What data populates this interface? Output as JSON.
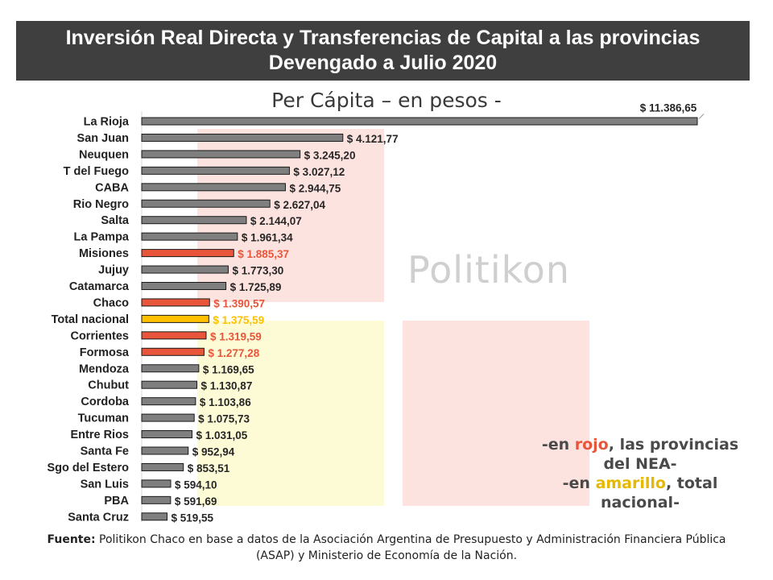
{
  "title": {
    "line1": "Inversión Real Directa y Transferencias de Capital a las provincias",
    "line2": "Devengado a Julio 2020"
  },
  "subtitle": "Per Cápita – en pesos -",
  "watermark": "Politikon",
  "legend": {
    "l1_prefix": "-en ",
    "l1_color_word": "rojo",
    "l1_suffix": ", las provincias",
    "l2": "del NEA-",
    "l3_prefix": "-en ",
    "l3_color_word": "amarillo",
    "l3_suffix": ", total",
    "l4": "nacional-"
  },
  "source": {
    "label": "Fuente:",
    "text": " Politikon Chaco en base a datos de la Asociación Argentina de Presupuesto y Administración Financiera Pública (ASAP) y Ministerio de Economía de la Nación."
  },
  "colors": {
    "default": "#7f7f7f",
    "nea": "#e8553a",
    "national": "#ffc000",
    "label_default": "#262626",
    "title_bg": "#3f3f3f"
  },
  "chart_data": {
    "type": "bar",
    "orientation": "horizontal",
    "title": "Per Cápita – en pesos -",
    "xlabel": "",
    "ylabel": "",
    "xlim": [
      0,
      11386.65
    ],
    "categories": [
      "La Rioja",
      "San Juan",
      "Neuquen",
      "T del Fuego",
      "CABA",
      "Rio Negro",
      "Salta",
      "La Pampa",
      "Misiones",
      "Jujuy",
      "Catamarca",
      "Chaco",
      "Total nacional",
      "Corrientes",
      "Formosa",
      "Mendoza",
      "Chubut",
      "Cordoba",
      "Tucuman",
      "Entre Rios",
      "Santa Fe",
      "Sgo del Estero",
      "San Luis",
      "PBA",
      "Santa Cruz"
    ],
    "values": [
      11386.65,
      4121.77,
      3245.2,
      3027.12,
      2944.75,
      2627.04,
      2144.07,
      1961.34,
      1885.37,
      1773.3,
      1725.89,
      1390.57,
      1375.59,
      1319.59,
      1277.28,
      1169.65,
      1130.87,
      1103.86,
      1075.73,
      1031.05,
      952.94,
      853.51,
      594.1,
      591.69,
      519.55
    ],
    "labels": [
      "$ 11.386,65",
      "$ 4.121,77",
      "$ 3.245,20",
      "$ 3.027,12",
      "$ 2.944,75",
      "$ 2.627,04",
      "$ 2.144,07",
      "$ 1.961,34",
      "$ 1.885,37",
      "$ 1.773,30",
      "$ 1.725,89",
      "$ 1.390,57",
      "$ 1.375,59",
      "$ 1.319,59",
      "$ 1.277,28",
      "$ 1.169,65",
      "$ 1.130,87",
      "$ 1.103,86",
      "$ 1.075,73",
      "$ 1.031,05",
      "$ 952,94",
      "$ 853,51",
      "$ 594,10",
      "$ 591,69",
      "$ 519,55"
    ],
    "groups": [
      "default",
      "default",
      "default",
      "default",
      "default",
      "default",
      "default",
      "default",
      "nea",
      "default",
      "default",
      "nea",
      "national",
      "nea",
      "nea",
      "default",
      "default",
      "default",
      "default",
      "default",
      "default",
      "default",
      "default",
      "default",
      "default"
    ]
  }
}
